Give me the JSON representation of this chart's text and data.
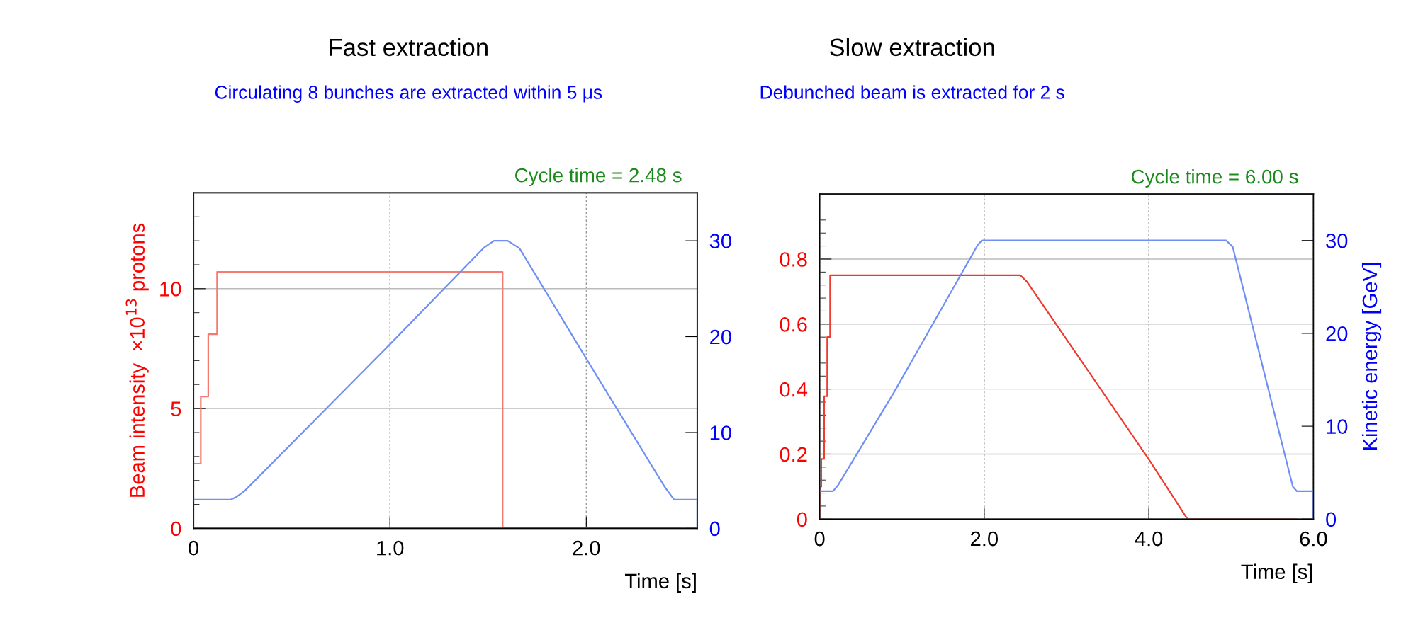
{
  "chart_data": [
    {
      "type": "line",
      "title": "Fast extraction",
      "subtitle": "Circulating 8 bunches are extracted within 5 μs",
      "xlabel": "Time [s]",
      "ylabel": "Beam intensity  ×10$^{13}$ protons",
      "annotations": [
        "Cycle time = 2.48 s"
      ],
      "xlim": [
        0,
        2.565
      ],
      "xticks": [
        0,
        {
          "value": 1,
          "label": "1.0"
        },
        {
          "value": 2,
          "label": "2.0"
        }
      ],
      "ylim": [
        0,
        14
      ],
      "yticks": [
        0,
        5,
        10
      ],
      "y2lim": [
        0,
        35
      ],
      "y2ticks": [
        0,
        10,
        20,
        30
      ],
      "grid": true,
      "series": [
        {
          "type": "step",
          "axis": "y",
          "color": "#f47a72",
          "x": [
            0,
            0.037,
            0.075,
            0.12,
            1.574,
            2.48
          ],
          "values": [
            2.7,
            5.5,
            8.1,
            10.7,
            0,
            0
          ]
        },
        {
          "axis": "y2",
          "color": "#6f8ff5",
          "x": [
            0,
            0.19,
            0.22,
            0.26,
            1.0,
            1.48,
            1.53,
            1.6,
            1.66,
            2.0,
            2.4,
            2.447,
            2.565,
            2.565
          ],
          "values": [
            3,
            3,
            3.3,
            3.9,
            19.2,
            29.3,
            30,
            30,
            29.2,
            17.7,
            4.3,
            3,
            3,
            0
          ]
        }
      ]
    },
    {
      "type": "line",
      "title": "Slow extraction",
      "subtitle": "Debunched beam is extracted for 2 s",
      "xlabel": "Time [s]",
      "y2label": "Kinetic energy [GeV]",
      "annotations": [
        "Cycle time = 6.00 s"
      ],
      "xlim": [
        0,
        6
      ],
      "xticks": [
        0,
        {
          "value": 2,
          "label": "2.0"
        },
        {
          "value": 4,
          "label": "4.0"
        },
        {
          "value": 6,
          "label": "6.0"
        }
      ],
      "ylim": [
        0,
        1.0
      ],
      "yticks": [
        0,
        0.2,
        0.4,
        0.6,
        0.8
      ],
      "y2lim": [
        0,
        35
      ],
      "y2ticks": [
        0,
        10,
        20,
        30
      ],
      "grid": true,
      "series": [
        {
          "axis": "y",
          "color": "#ee3b30",
          "x": [
            0,
            0,
            0.02,
            0.02,
            0.054,
            0.054,
            0.092,
            0.092,
            0.127,
            0.127,
            2.44,
            2.52,
            4.0,
            4.47,
            5.79
          ],
          "values": [
            0,
            0.1,
            0.1,
            0.185,
            0.185,
            0.378,
            0.378,
            0.56,
            0.56,
            0.75,
            0.75,
            0.73,
            0.184,
            0,
            0
          ]
        },
        {
          "axis": "y2",
          "color": "#6f8ff5",
          "x": [
            0,
            0.16,
            0.22,
            0.9,
            1.92,
            1.97,
            4.94,
            5.02,
            5.5,
            5.75,
            5.8,
            6.0,
            6.0
          ],
          "values": [
            3,
            3,
            3.6,
            13.6,
            29.5,
            30,
            30,
            29.3,
            12.3,
            3.5,
            3,
            3,
            0
          ]
        }
      ]
    }
  ]
}
